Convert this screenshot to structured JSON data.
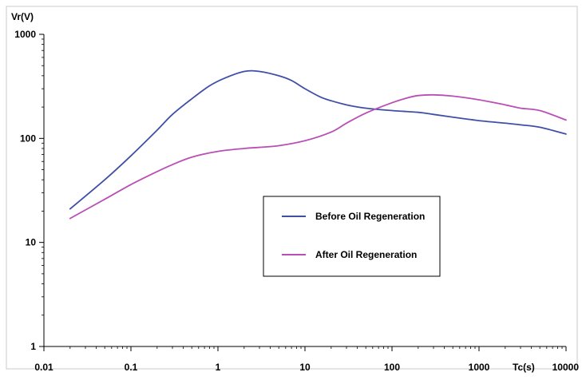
{
  "chart_data": {
    "type": "line",
    "title": "",
    "xlabel": "Tc(s)",
    "ylabel": "Vr(V)",
    "x_scale": "log",
    "y_scale": "log",
    "xlim": [
      0.01,
      10000
    ],
    "ylim": [
      1,
      1000
    ],
    "x_ticks": [
      "0.01",
      "0.1",
      "1",
      "10",
      "100",
      "1000",
      "10000"
    ],
    "y_ticks": [
      "1",
      "10",
      "100",
      "1000"
    ],
    "grid": false,
    "legend_position": "center-right",
    "series": [
      {
        "name": "Before Oil Regeneration",
        "color": "#3F4FA8",
        "points": [
          [
            0.02,
            21
          ],
          [
            0.05,
            40
          ],
          [
            0.1,
            68
          ],
          [
            0.2,
            120
          ],
          [
            0.3,
            170
          ],
          [
            0.5,
            240
          ],
          [
            0.8,
            320
          ],
          [
            1.2,
            380
          ],
          [
            2,
            440
          ],
          [
            3,
            440
          ],
          [
            5,
            400
          ],
          [
            7,
            360
          ],
          [
            10,
            300
          ],
          [
            15,
            250
          ],
          [
            20,
            230
          ],
          [
            30,
            210
          ],
          [
            50,
            195
          ],
          [
            100,
            185
          ],
          [
            200,
            178
          ],
          [
            300,
            170
          ],
          [
            500,
            160
          ],
          [
            1000,
            148
          ],
          [
            2000,
            140
          ],
          [
            3000,
            135
          ],
          [
            5000,
            128
          ],
          [
            10000,
            110
          ]
        ]
      },
      {
        "name": "After Oil Regeneration",
        "color": "#B94FB5",
        "points": [
          [
            0.02,
            17
          ],
          [
            0.05,
            26
          ],
          [
            0.1,
            36
          ],
          [
            0.2,
            48
          ],
          [
            0.3,
            56
          ],
          [
            0.5,
            66
          ],
          [
            1,
            75
          ],
          [
            2,
            80
          ],
          [
            3,
            82
          ],
          [
            5,
            85
          ],
          [
            10,
            95
          ],
          [
            20,
            115
          ],
          [
            30,
            140
          ],
          [
            50,
            175
          ],
          [
            100,
            220
          ],
          [
            150,
            245
          ],
          [
            200,
            258
          ],
          [
            300,
            262
          ],
          [
            500,
            255
          ],
          [
            1000,
            235
          ],
          [
            2000,
            210
          ],
          [
            3000,
            195
          ],
          [
            5000,
            185
          ],
          [
            10000,
            150
          ]
        ]
      }
    ]
  }
}
